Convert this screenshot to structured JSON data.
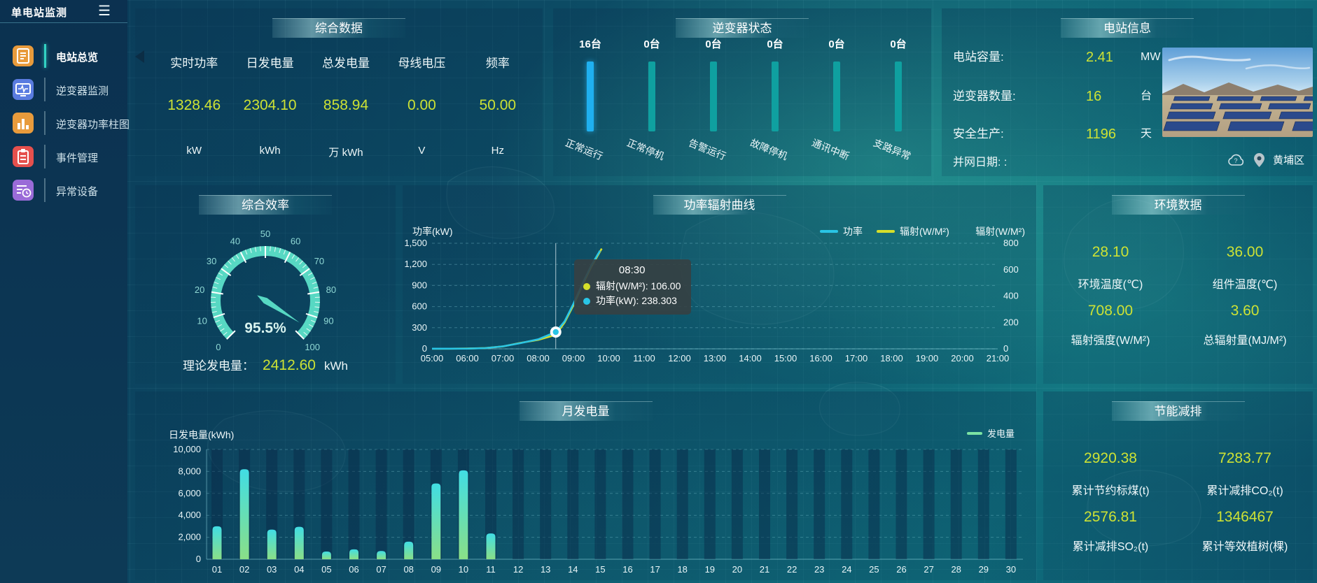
{
  "app": {
    "title": "单电站监测",
    "menu_icon": "☰"
  },
  "sidebar": {
    "items": [
      {
        "label": "电站总览",
        "icon": "overview-icon",
        "color": "#e89b3c",
        "active": true
      },
      {
        "label": "逆变器监测",
        "icon": "inverter-monitor-icon",
        "color": "#5a7ce0",
        "active": false
      },
      {
        "label": "逆变器功率柱图",
        "icon": "power-bars-icon",
        "color": "#e89b3c",
        "active": false
      },
      {
        "label": "事件管理",
        "icon": "event-clipboard-icon",
        "color": "#e5504d",
        "active": false
      },
      {
        "label": "异常设备",
        "icon": "abnormal-device-icon",
        "color": "#9a6bd8",
        "active": false
      }
    ]
  },
  "panels": {
    "comprehensive": {
      "title": "综合数据",
      "metrics": [
        {
          "label": "实时功率",
          "value": "1328.46",
          "unit": "kW"
        },
        {
          "label": "日发电量",
          "value": "2304.10",
          "unit": "kWh"
        },
        {
          "label": "总发电量",
          "value": "858.94",
          "unit": "万 kWh"
        },
        {
          "label": "母线电压",
          "value": "0.00",
          "unit": "V"
        },
        {
          "label": "频率",
          "value": "50.00",
          "unit": "Hz"
        }
      ]
    },
    "inverter_status": {
      "title": "逆变器状态",
      "active_color": "#1fb0f0",
      "idle_color": "#0fa0a0",
      "bars": [
        {
          "count": "16台",
          "label": "正常运行",
          "active": true
        },
        {
          "count": "0台",
          "label": "正常停机",
          "active": false
        },
        {
          "count": "0台",
          "label": "告警运行",
          "active": false
        },
        {
          "count": "0台",
          "label": "故障停机",
          "active": false
        },
        {
          "count": "0台",
          "label": "通讯中断",
          "active": false
        },
        {
          "count": "0台",
          "label": "支路异常",
          "active": false
        }
      ]
    },
    "station_info": {
      "title": "电站信息",
      "rows": [
        {
          "label": "电站容量:",
          "value": "2.41",
          "unit": "MW"
        },
        {
          "label": "逆变器数量:",
          "value": "16",
          "unit": "台"
        },
        {
          "label": "安全生产:",
          "value": "1196",
          "unit": "天"
        },
        {
          "label": "并网日期: :",
          "value": "",
          "unit": ""
        }
      ],
      "location": "黄埔区",
      "photo": "solar-farm-photo"
    },
    "efficiency": {
      "title": "综合效率",
      "gauge": {
        "value": 95.5,
        "display": "95.5%",
        "min": 0,
        "max": 100,
        "tick_step": 10
      },
      "theoretical": {
        "label": "理论发电量：",
        "value": "2412.60",
        "unit": "kWh"
      }
    },
    "power_curve": {
      "title": "功率辐射曲线",
      "left_axis": {
        "name": "功率(kW)",
        "max": 1500,
        "ticks": [
          "1,500",
          "1,200",
          "900",
          "600",
          "300",
          "0"
        ]
      },
      "right_axis": {
        "name": "辐射(W/M²)",
        "max": 800,
        "ticks": [
          "800",
          "600",
          "400",
          "200",
          "0"
        ]
      },
      "x_labels": [
        "05:00",
        "06:00",
        "07:00",
        "08:00",
        "09:00",
        "10:00",
        "11:00",
        "12:00",
        "13:00",
        "14:00",
        "15:00",
        "16:00",
        "17:00",
        "18:00",
        "19:00",
        "20:00",
        "21:00"
      ],
      "legend": [
        {
          "name": "功率",
          "color": "#29c5e6"
        },
        {
          "name": "辐射(W/M²)",
          "color": "#d6df2a"
        }
      ],
      "tooltip": {
        "time": "08:30",
        "rows": [
          {
            "dot": "#d6df2a",
            "text": "辐射(W/M²): 106.00"
          },
          {
            "dot": "#29c5e6",
            "text": "功率(kW): 238.303"
          }
        ]
      },
      "pointer_x": 8.5,
      "highlight": {
        "x": 8.5,
        "power": 238.303
      },
      "series": {
        "power": [
          [
            5,
            2
          ],
          [
            5.5,
            2
          ],
          [
            6,
            3
          ],
          [
            6.5,
            10
          ],
          [
            7,
            35
          ],
          [
            7.5,
            80
          ],
          [
            8,
            135
          ],
          [
            8.5,
            238.3
          ],
          [
            8.75,
            390
          ],
          [
            9,
            640
          ],
          [
            9.25,
            920
          ],
          [
            9.5,
            1180
          ],
          [
            9.75,
            1395
          ]
        ],
        "radiation": [
          [
            5,
            1
          ],
          [
            5.5,
            1
          ],
          [
            6,
            2
          ],
          [
            6.5,
            6
          ],
          [
            7,
            18
          ],
          [
            7.5,
            45
          ],
          [
            8,
            68
          ],
          [
            8.5,
            106
          ],
          [
            8.75,
            200
          ],
          [
            9,
            330
          ],
          [
            9.25,
            480
          ],
          [
            9.5,
            620
          ],
          [
            9.8,
            760
          ]
        ]
      }
    },
    "environment": {
      "title": "环境数据",
      "metrics": [
        {
          "value": "28.10",
          "label": "环境温度(℃)"
        },
        {
          "value": "36.00",
          "label": "组件温度(℃)"
        },
        {
          "value": "708.00",
          "label": "辐射强度(W/M²)"
        },
        {
          "value": "3.60",
          "label": "总辐射量(MJ/M²)"
        }
      ]
    },
    "monthly": {
      "title": "月发电量",
      "ylabel": "日发电量(kWh)",
      "legend_label": "发电量",
      "legend_color": "#7be3a3",
      "y_ticks": [
        "10,000",
        "8,000",
        "6,000",
        "4,000",
        "2,000",
        "0"
      ],
      "ymax": 10000,
      "categories": [
        "01",
        "02",
        "03",
        "04",
        "05",
        "06",
        "07",
        "08",
        "09",
        "10",
        "11",
        "12",
        "13",
        "14",
        "15",
        "16",
        "17",
        "18",
        "19",
        "20",
        "21",
        "22",
        "23",
        "24",
        "25",
        "26",
        "27",
        "28",
        "29",
        "30"
      ],
      "values": [
        3000,
        8200,
        2700,
        2950,
        700,
        900,
        750,
        1600,
        6900,
        8100,
        2350,
        0,
        0,
        0,
        0,
        0,
        0,
        0,
        0,
        0,
        0,
        0,
        0,
        0,
        0,
        0,
        0,
        0,
        0,
        0
      ]
    },
    "savings": {
      "title": "节能减排",
      "metrics": [
        {
          "value": "2920.38",
          "label": "累计节约标煤(t)"
        },
        {
          "value": "7283.77",
          "label": "累计减排CO₂(t)"
        },
        {
          "value": "2576.81",
          "label": "累计减排SO₂(t)"
        },
        {
          "value": "1346467",
          "label": "累计等效植树(棵)"
        }
      ]
    }
  },
  "chart_data": [
    {
      "type": "gauge",
      "title": "综合效率",
      "value": 95.5,
      "min": 0,
      "max": 100,
      "tick_labels": [
        0,
        10,
        20,
        30,
        40,
        50,
        60,
        70,
        80,
        90,
        100
      ],
      "display": "95.5%"
    },
    {
      "type": "line",
      "title": "功率辐射曲线",
      "xlabel": "",
      "ylabel": "功率(kW)",
      "ylabel_right": "辐射(W/M²)",
      "x_range": [
        "05:00",
        "21:00"
      ],
      "ylim": [
        0,
        1500
      ],
      "ylim_right": [
        0,
        800
      ],
      "grid": true,
      "legend_position": "top-right",
      "series": [
        {
          "name": "功率",
          "x": [
            5,
            5.5,
            6,
            6.5,
            7,
            7.5,
            8,
            8.5,
            8.75,
            9,
            9.25,
            9.5,
            9.75
          ],
          "values": [
            2,
            2,
            3,
            10,
            35,
            80,
            135,
            238.3,
            390,
            640,
            920,
            1180,
            1395
          ]
        },
        {
          "name": "辐射(W/M²)",
          "x": [
            5,
            5.5,
            6,
            6.5,
            7,
            7.5,
            8,
            8.5,
            8.75,
            9,
            9.25,
            9.5,
            9.8
          ],
          "values": [
            1,
            1,
            2,
            6,
            18,
            45,
            68,
            106,
            200,
            330,
            480,
            620,
            760
          ]
        }
      ],
      "annotations": [
        "08:30 辐射(W/M²): 106.00 功率(kW): 238.303"
      ]
    },
    {
      "type": "bar",
      "title": "逆变器状态",
      "categories": [
        "正常运行",
        "正常停机",
        "告警运行",
        "故障停机",
        "通讯中断",
        "支路异常"
      ],
      "values": [
        16,
        0,
        0,
        0,
        0,
        0
      ],
      "unit": "台"
    },
    {
      "type": "bar",
      "title": "月发电量",
      "xlabel": "",
      "ylabel": "日发电量(kWh)",
      "ylim": [
        0,
        10000
      ],
      "categories": [
        "01",
        "02",
        "03",
        "04",
        "05",
        "06",
        "07",
        "08",
        "09",
        "10",
        "11",
        "12",
        "13",
        "14",
        "15",
        "16",
        "17",
        "18",
        "19",
        "20",
        "21",
        "22",
        "23",
        "24",
        "25",
        "26",
        "27",
        "28",
        "29",
        "30"
      ],
      "values": [
        3000,
        8200,
        2700,
        2950,
        700,
        900,
        750,
        1600,
        6900,
        8100,
        2350,
        0,
        0,
        0,
        0,
        0,
        0,
        0,
        0,
        0,
        0,
        0,
        0,
        0,
        0,
        0,
        0,
        0,
        0,
        0
      ]
    }
  ]
}
